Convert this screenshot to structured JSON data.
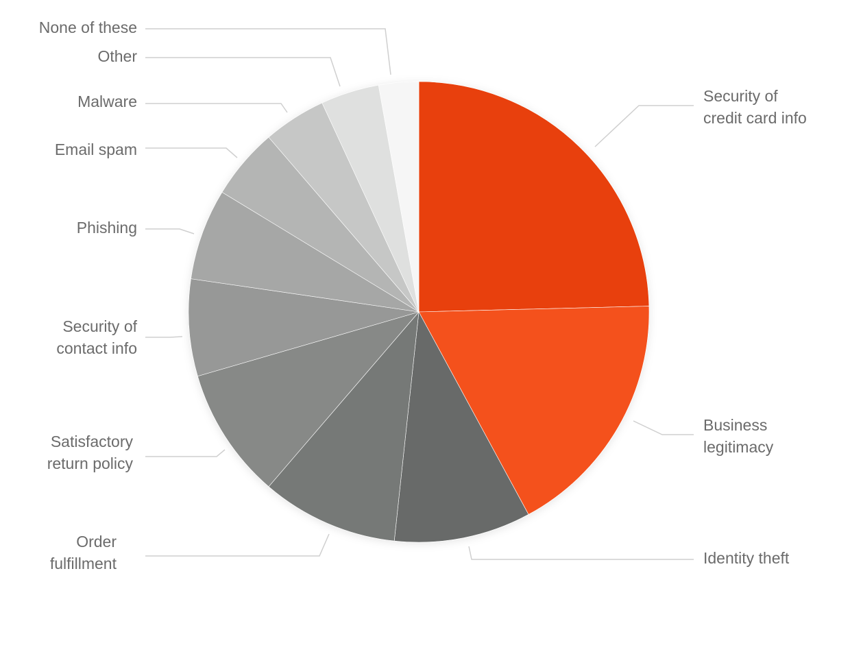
{
  "chart_data": {
    "type": "pie",
    "slices": [
      {
        "label": "Security of credit card info",
        "value": 24.6,
        "color": "#e8410b"
      },
      {
        "label": "Business legitimacy",
        "value": 17.5,
        "color": "#f4511e"
      },
      {
        "label": "Identity theft",
        "value": 9.6,
        "color": "#676b69"
      },
      {
        "label": "Order fulfillment",
        "value": 9.6,
        "color": "#767977"
      },
      {
        "label": "Satisfactory return policy",
        "value": 9.2,
        "color": "#878987"
      },
      {
        "label": "Security of contact info",
        "value": 6.8,
        "color": "#979897"
      },
      {
        "label": "Phishing",
        "value": 6.4,
        "color": "#a6a7a6"
      },
      {
        "label": "Email spam",
        "value": 5.0,
        "color": "#b4b5b4"
      },
      {
        "label": "Malware",
        "value": 4.4,
        "color": "#c6c7c6"
      },
      {
        "label": "Other",
        "value": 4.1,
        "color": "#dfe0df"
      },
      {
        "label": "None of these",
        "value": 2.8,
        "color": "#f6f6f6"
      }
    ]
  }
}
